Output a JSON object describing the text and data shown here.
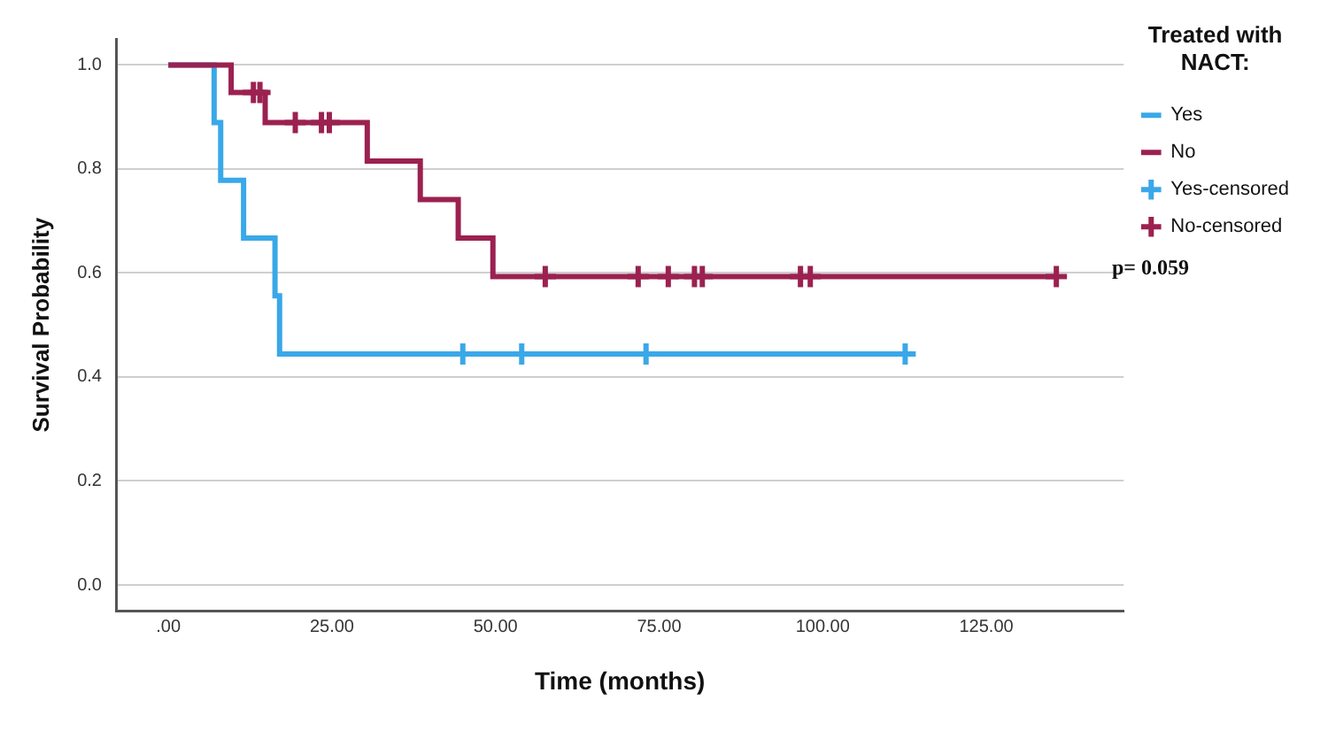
{
  "chart_data": {
    "type": "step",
    "xlabel": "Time (months)",
    "ylabel": "Survival Probability",
    "legend_title": "Treated with NACT:",
    "xlim": [
      -8,
      146
    ],
    "ylim": [
      -0.05,
      1.05
    ],
    "xticks": [
      {
        "value": 0,
        "label": ".00"
      },
      {
        "value": 25,
        "label": "25.00"
      },
      {
        "value": 50,
        "label": "50.00"
      },
      {
        "value": 75,
        "label": "75.00"
      },
      {
        "value": 100,
        "label": "100.00"
      },
      {
        "value": 125,
        "label": "125.00"
      }
    ],
    "yticks": [
      {
        "value": 0,
        "label": "0.0"
      },
      {
        "value": 0.2,
        "label": "0.2"
      },
      {
        "value": 0.4,
        "label": "0.4"
      },
      {
        "value": 0.6,
        "label": "0.6"
      },
      {
        "value": 0.8,
        "label": "0.8"
      },
      {
        "value": 1,
        "label": "1.0"
      }
    ],
    "grid": "y",
    "legend": "top right",
    "annotations": [
      "p= 0.059"
    ],
    "series": [
      {
        "name": "Yes",
        "type": "step",
        "color": "#3aa8e8",
        "marker": "none",
        "x": [
          0,
          7,
          8,
          11.5,
          16.3,
          17,
          112.6
        ],
        "values": [
          1,
          0.889,
          0.778,
          0.667,
          0.556,
          0.444,
          0.444
        ]
      },
      {
        "name": "No",
        "type": "step",
        "color": "#9b2150",
        "marker": "none",
        "x": [
          0,
          9.6,
          14.8,
          30.4,
          38.5,
          44.3,
          49.6,
          135.7
        ],
        "values": [
          1,
          0.947,
          0.889,
          0.815,
          0.741,
          0.667,
          0.593,
          0.593
        ]
      },
      {
        "name": "Yes-censored",
        "type": "scatter",
        "color": "#3aa8e8",
        "marker": "cross",
        "x": [
          45,
          54,
          73,
          112.6
        ],
        "values": [
          0.444,
          0.444,
          0.444,
          0.444
        ]
      },
      {
        "name": "No-censored",
        "type": "scatter",
        "color": "#9b2150",
        "marker": "cross",
        "x": [
          13,
          14,
          19.4,
          23.4,
          24.6,
          57.6,
          71.8,
          76.4,
          80.4,
          81.6,
          96.6,
          98.1,
          135.7
        ],
        "values": [
          0.947,
          0.947,
          0.889,
          0.889,
          0.889,
          0.593,
          0.593,
          0.593,
          0.593,
          0.593,
          0.593,
          0.593,
          0.593
        ]
      }
    ]
  }
}
